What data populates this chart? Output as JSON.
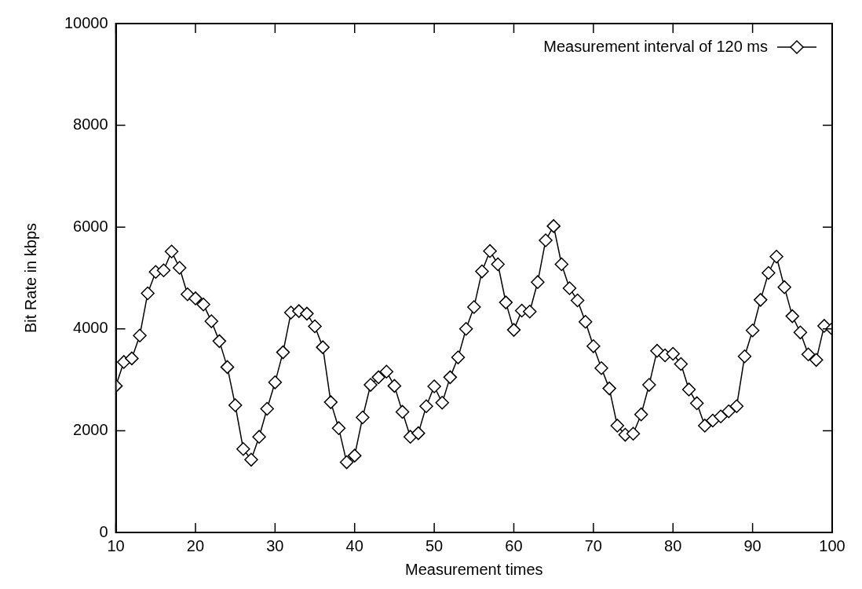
{
  "chart_data": {
    "type": "line",
    "xlabel": "Measurement times",
    "ylabel": "Bit Rate in kbps",
    "x": [
      10,
      11,
      12,
      13,
      14,
      15,
      16,
      17,
      18,
      19,
      20,
      21,
      22,
      23,
      24,
      25,
      26,
      27,
      28,
      29,
      30,
      31,
      32,
      33,
      34,
      35,
      36,
      37,
      38,
      39,
      40,
      41,
      42,
      43,
      44,
      45,
      46,
      47,
      48,
      49,
      50,
      51,
      52,
      53,
      54,
      55,
      56,
      57,
      58,
      59,
      60,
      61,
      62,
      63,
      64,
      65,
      66,
      67,
      68,
      69,
      70,
      71,
      72,
      73,
      74,
      75,
      76,
      77,
      78,
      79,
      80,
      81,
      82,
      83,
      84,
      85,
      86,
      87,
      88,
      89,
      90,
      91,
      92,
      93,
      94,
      95,
      96,
      97,
      98,
      99,
      100
    ],
    "series": [
      {
        "name": "Measurement interval of 120 ms",
        "color": "#000000",
        "values": [
          2880,
          3350,
          3420,
          3870,
          4700,
          5120,
          5150,
          5520,
          5200,
          4680,
          4600,
          4480,
          4150,
          3760,
          3250,
          2500,
          1640,
          1430,
          1880,
          2430,
          2950,
          3540,
          4320,
          4350,
          4300,
          4050,
          3640,
          2560,
          2050,
          1380,
          1510,
          2260,
          2900,
          3050,
          3160,
          2880,
          2370,
          1880,
          1950,
          2480,
          2870,
          2550,
          3050,
          3440,
          4000,
          4430,
          5130,
          5530,
          5270,
          4520,
          3980,
          4360,
          4340,
          4920,
          5740,
          6020,
          5270,
          4800,
          4560,
          4140,
          3660,
          3230,
          2830,
          2100,
          1920,
          1940,
          2320,
          2900,
          3570,
          3480,
          3510,
          3310,
          2810,
          2540,
          2100,
          2200,
          2280,
          2380,
          2480,
          3460,
          3970,
          4570,
          5100,
          5420,
          4820,
          4250,
          3930,
          3500,
          3390,
          4060,
          4000
        ]
      }
    ],
    "xlim": [
      10,
      100
    ],
    "xticks": [
      10,
      20,
      30,
      40,
      50,
      60,
      70,
      80,
      90,
      100
    ],
    "ylim": [
      0,
      10000
    ],
    "yticks": [
      0,
      2000,
      4000,
      6000,
      8000,
      10000
    ],
    "grid": false,
    "legend": "top right",
    "marker": "diamond",
    "line_style": "solid"
  }
}
